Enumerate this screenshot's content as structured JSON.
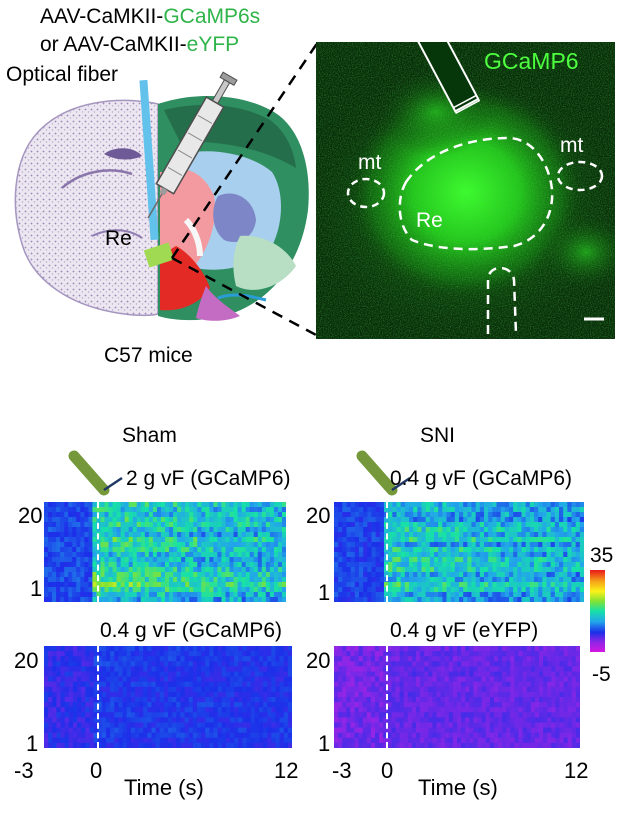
{
  "top_panel": {
    "virus_line1_prefix": "AAV-CaMKII-",
    "virus_line1_highlight": "GCaMP6s",
    "virus_line2_prefix": "or AAV-CaMKII-",
    "virus_line2_highlight": "eYFP",
    "optical_fiber_label": "Optical fiber",
    "region_label": "Re",
    "mice_label": "C57 mice",
    "micrograph_title": "GCaMP6",
    "micrograph_label_mt_left": "mt",
    "micrograph_label_mt_right": "mt",
    "micrograph_label_re": "Re"
  },
  "bottom_panel": {
    "sham_title": "Sham",
    "sni_title": "SNI",
    "sham_top_stim": "2 g vF (GCaMP6)",
    "sni_top_stim": "0.4 g vF (GCaMP6)",
    "sham_bottom_stim": "0.4 g vF (GCaMP6)",
    "sni_bottom_stim": "0.4 g vF (eYFP)",
    "y_tick_top": "20",
    "y_tick_bottom": "1",
    "x_tick_start": "-3",
    "x_tick_zero": "0",
    "x_tick_end": "12",
    "x_axis_label": "Time (s)",
    "colorbar_max": "35",
    "colorbar_min": "-5"
  },
  "chart_data": [
    {
      "type": "heatmap",
      "name": "Sham 2 g vF (GCaMP6)",
      "trials": 20,
      "x_range": [
        -3,
        12
      ],
      "color_range": [
        -5,
        35
      ],
      "onset_time": 0
    },
    {
      "type": "heatmap",
      "name": "SNI 0.4 g vF (GCaMP6)",
      "trials": 20,
      "x_range": [
        -3,
        12
      ],
      "color_range": [
        -5,
        35
      ],
      "onset_time": 0
    },
    {
      "type": "heatmap",
      "name": "Sham 0.4 g vF (GCaMP6)",
      "trials": 20,
      "x_range": [
        -3,
        12
      ],
      "color_range": [
        -5,
        35
      ],
      "onset_time": 0
    },
    {
      "type": "heatmap",
      "name": "SNI 0.4 g vF (eYFP)",
      "trials": 20,
      "x_range": [
        -3,
        12
      ],
      "color_range": [
        -5,
        35
      ],
      "onset_time": 0
    }
  ]
}
